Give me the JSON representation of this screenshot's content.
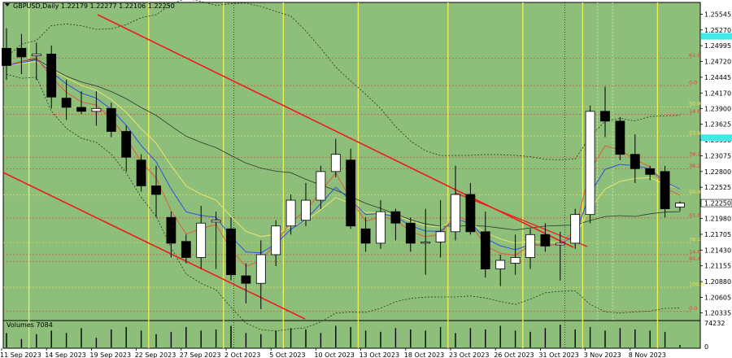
{
  "chart_data": {
    "type": "candlestick",
    "title": "GBPUSD,Daily  1.22179 1.22277 1.22106 1.22250",
    "last_price": "1.22250",
    "ylim": [
      1.202,
      1.2575
    ],
    "price_ticks": [
      "1.25545",
      "1.25270",
      "1.24995",
      "1.24720",
      "1.24445",
      "1.24170",
      "1.23900",
      "1.23625",
      "1.23350",
      "1.23075",
      "1.22800",
      "1.22525",
      "1.22250",
      "1.21980",
      "1.21705",
      "1.21430",
      "1.21155",
      "1.20880",
      "1.20605",
      "1.20335"
    ],
    "date_labels": [
      "11 Sep 2023",
      "14 Sep 2023",
      "19 Sep 2023",
      "22 Sep 2023",
      "27 Sep 2023",
      "2 Oct 2023",
      "5 Oct 2023",
      "10 Oct 2023",
      "13 Oct 2023",
      "18 Oct 2023",
      "23 Oct 2023",
      "26 Oct 2023",
      "31 Oct 2023",
      "3 Nov 2023",
      "8 Nov 2023"
    ],
    "candles": [
      {
        "o": 1.2495,
        "h": 1.253,
        "l": 1.244,
        "c": 1.2465
      },
      {
        "o": 1.2495,
        "h": 1.252,
        "l": 1.245,
        "c": 1.248
      },
      {
        "o": 1.2482,
        "h": 1.2505,
        "l": 1.244,
        "c": 1.2485
      },
      {
        "o": 1.2485,
        "h": 1.25,
        "l": 1.239,
        "c": 1.241
      },
      {
        "o": 1.2408,
        "h": 1.244,
        "l": 1.237,
        "c": 1.2392
      },
      {
        "o": 1.2392,
        "h": 1.242,
        "l": 1.238,
        "c": 1.2385
      },
      {
        "o": 1.2385,
        "h": 1.242,
        "l": 1.236,
        "c": 1.239
      },
      {
        "o": 1.239,
        "h": 1.24,
        "l": 1.234,
        "c": 1.235
      },
      {
        "o": 1.235,
        "h": 1.236,
        "l": 1.228,
        "c": 1.2305
      },
      {
        "o": 1.23,
        "h": 1.231,
        "l": 1.2245,
        "c": 1.2255
      },
      {
        "o": 1.2255,
        "h": 1.229,
        "l": 1.22,
        "c": 1.224
      },
      {
        "o": 1.22,
        "h": 1.221,
        "l": 1.213,
        "c": 1.2155
      },
      {
        "o": 1.2158,
        "h": 1.217,
        "l": 1.212,
        "c": 1.213
      },
      {
        "o": 1.213,
        "h": 1.222,
        "l": 1.211,
        "c": 1.219
      },
      {
        "o": 1.2192,
        "h": 1.221,
        "l": 1.211,
        "c": 1.2195
      },
      {
        "o": 1.218,
        "h": 1.22,
        "l": 1.209,
        "c": 1.21
      },
      {
        "o": 1.2098,
        "h": 1.212,
        "l": 1.205,
        "c": 1.2085
      },
      {
        "o": 1.2085,
        "h": 1.216,
        "l": 1.204,
        "c": 1.2135
      },
      {
        "o": 1.2135,
        "h": 1.2195,
        "l": 1.2115,
        "c": 1.2185
      },
      {
        "o": 1.2185,
        "h": 1.224,
        "l": 1.217,
        "c": 1.223
      },
      {
        "o": 1.2195,
        "h": 1.226,
        "l": 1.2185,
        "c": 1.223
      },
      {
        "o": 1.223,
        "h": 1.229,
        "l": 1.2215,
        "c": 1.228
      },
      {
        "o": 1.228,
        "h": 1.2337,
        "l": 1.227,
        "c": 1.231
      },
      {
        "o": 1.23,
        "h": 1.232,
        "l": 1.218,
        "c": 1.2185
      },
      {
        "o": 1.218,
        "h": 1.22,
        "l": 1.214,
        "c": 1.2155
      },
      {
        "o": 1.2155,
        "h": 1.223,
        "l": 1.2145,
        "c": 1.221
      },
      {
        "o": 1.221,
        "h": 1.2215,
        "l": 1.216,
        "c": 1.219
      },
      {
        "o": 1.219,
        "h": 1.22,
        "l": 1.214,
        "c": 1.2155
      },
      {
        "o": 1.2155,
        "h": 1.2215,
        "l": 1.21,
        "c": 1.2157
      },
      {
        "o": 1.2157,
        "h": 1.223,
        "l": 1.213,
        "c": 1.2175
      },
      {
        "o": 1.2175,
        "h": 1.229,
        "l": 1.216,
        "c": 1.224
      },
      {
        "o": 1.224,
        "h": 1.226,
        "l": 1.217,
        "c": 1.2175
      },
      {
        "o": 1.2175,
        "h": 1.221,
        "l": 1.2095,
        "c": 1.211
      },
      {
        "o": 1.211,
        "h": 1.2135,
        "l": 1.208,
        "c": 1.2125
      },
      {
        "o": 1.212,
        "h": 1.217,
        "l": 1.21,
        "c": 1.213
      },
      {
        "o": 1.213,
        "h": 1.218,
        "l": 1.211,
        "c": 1.217
      },
      {
        "o": 1.217,
        "h": 1.219,
        "l": 1.214,
        "c": 1.215
      },
      {
        "o": 1.2152,
        "h": 1.2175,
        "l": 1.209,
        "c": 1.2155
      },
      {
        "o": 1.2155,
        "h": 1.2215,
        "l": 1.2145,
        "c": 1.2205
      },
      {
        "o": 1.2205,
        "h": 1.2395,
        "l": 1.219,
        "c": 1.2385
      },
      {
        "o": 1.2385,
        "h": 1.2428,
        "l": 1.234,
        "c": 1.2368
      },
      {
        "o": 1.2368,
        "h": 1.2375,
        "l": 1.23,
        "c": 1.231
      },
      {
        "o": 1.231,
        "h": 1.2345,
        "l": 1.226,
        "c": 1.2285
      },
      {
        "o": 1.2285,
        "h": 1.229,
        "l": 1.2265,
        "c": 1.2275
      },
      {
        "o": 1.228,
        "h": 1.229,
        "l": 1.22,
        "c": 1.2215
      },
      {
        "o": 1.2218,
        "h": 1.2228,
        "l": 1.2211,
        "c": 1.2225
      }
    ],
    "volumes": [
      60,
      35,
      55,
      70,
      60,
      80,
      40,
      75,
      85,
      70,
      55,
      65,
      85,
      70,
      75,
      90,
      60,
      55,
      70,
      80,
      75,
      60,
      90,
      85,
      70,
      65,
      80,
      75,
      70,
      85,
      60,
      80,
      75,
      90,
      70,
      65,
      80,
      95,
      75,
      85,
      70,
      80,
      75,
      70,
      65,
      10
    ],
    "volume_label": "Volumes 7084",
    "volume_max": "74232",
    "volume_zero": "0",
    "fib_levels": [
      {
        "label": "0.0",
        "price": 1.2036
      },
      {
        "label": "100.0",
        "price": 1.2078
      },
      {
        "label": "85.4",
        "price": 1.2123
      },
      {
        "label": "14.6",
        "price": 1.2135
      },
      {
        "label": "76.4",
        "price": 1.2156
      },
      {
        "label": "61.8",
        "price": 1.2199
      },
      {
        "label": "50.0",
        "price": 1.2239
      },
      {
        "label": "38.2",
        "price": 1.2285
      },
      {
        "label": "38.2",
        "price": 1.2305
      },
      {
        "label": "23.6",
        "price": 1.2342
      },
      {
        "label": "14.6",
        "price": 1.238
      },
      {
        "label": "50.0",
        "price": 1.2393
      },
      {
        "label": "0.0",
        "price": 1.243
      },
      {
        "label": "61.8",
        "price": 1.2478
      }
    ],
    "highlight_levels": [
      1.2516,
      1.2339
    ],
    "legend": "none",
    "grid": false
  }
}
